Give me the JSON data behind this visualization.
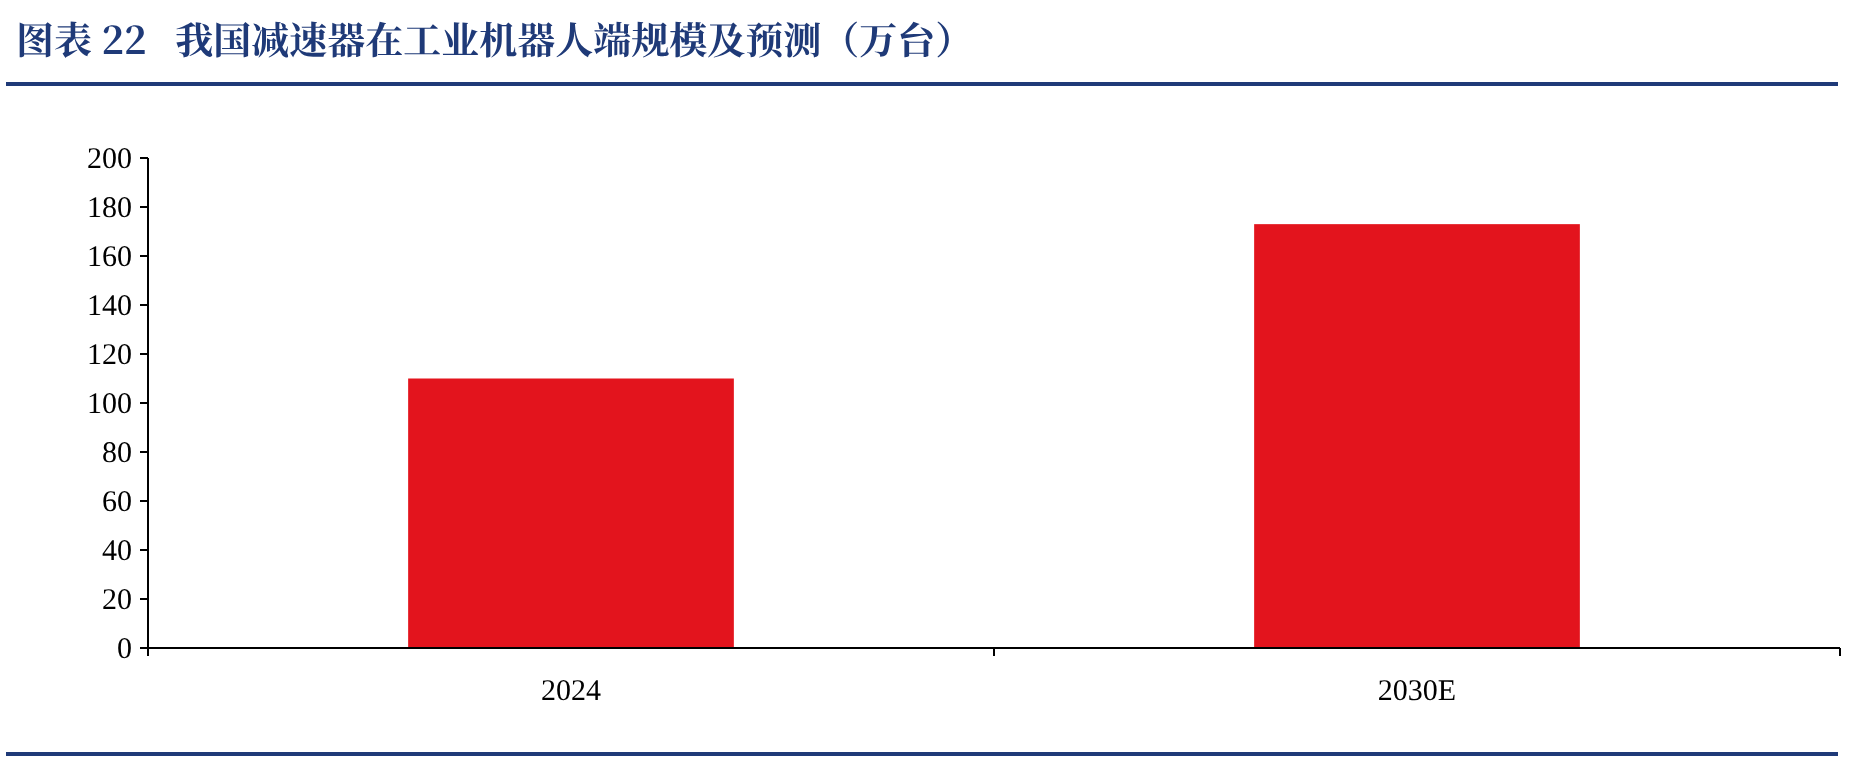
{
  "chart_data": {
    "type": "bar",
    "title": "图表 22   我国减速器在工业机器人端规模及预测（万台）",
    "categories": [
      "2024",
      "2030E"
    ],
    "values": [
      110,
      173
    ],
    "color": "#e3141d",
    "ylim": [
      0,
      200
    ],
    "yticks": [
      0,
      20,
      40,
      60,
      80,
      100,
      120,
      140,
      160,
      180,
      200
    ],
    "grid": false
  }
}
